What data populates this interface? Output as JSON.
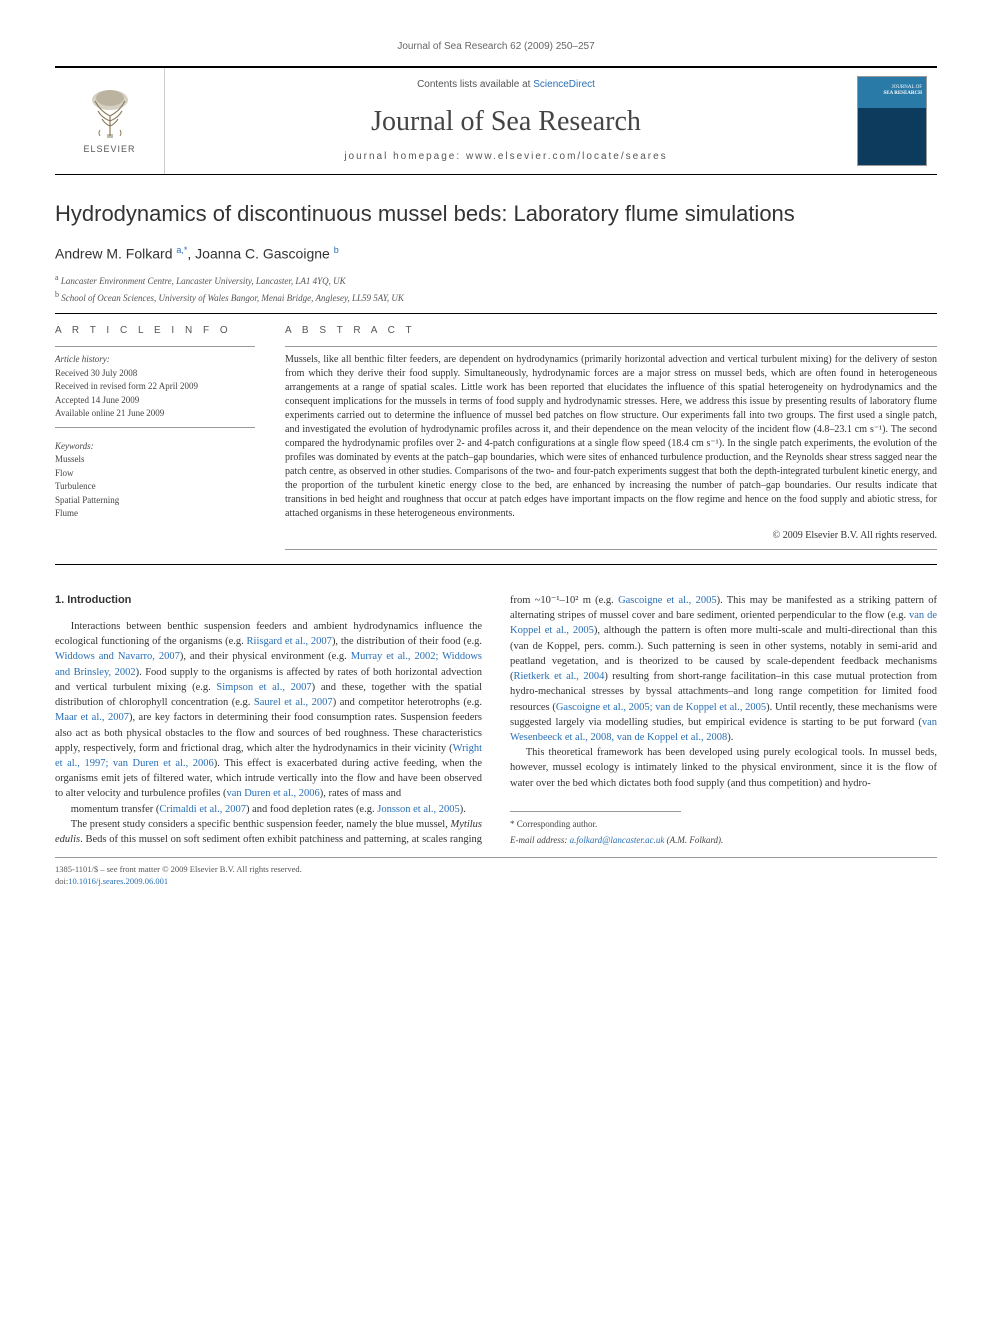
{
  "running_head": "Journal of Sea Research 62 (2009) 250–257",
  "masthead": {
    "contents_prefix": "Contents lists available at ",
    "contents_link": "ScienceDirect",
    "journal_name": "Journal of Sea Research",
    "homepage_prefix": "journal homepage: ",
    "homepage_url": "www.elsevier.com/locate/seares",
    "publisher_name": "ELSEVIER",
    "cover_label_top": "JOURNAL OF",
    "cover_label_bottom": "SEA RESEARCH"
  },
  "article": {
    "title": "Hydrodynamics of discontinuous mussel beds: Laboratory flume simulations",
    "authors_html": "Andrew M. Folkard <sup>a,</sup>*, Joanna C. Gascoigne <sup>b</sup>",
    "authors": [
      {
        "name": "Andrew M. Folkard",
        "marks": "a,*"
      },
      {
        "name": "Joanna C. Gascoigne",
        "marks": "b"
      }
    ],
    "affiliations": [
      {
        "mark": "a",
        "text": "Lancaster Environment Centre, Lancaster University, Lancaster, LA1 4YQ, UK"
      },
      {
        "mark": "b",
        "text": "School of Ocean Sciences, University of Wales Bangor, Menai Bridge, Anglesey, LL59 5AY, UK"
      }
    ]
  },
  "info_head": "A R T I C L E   I N F O",
  "abstract_head": "A B S T R A C T",
  "history": {
    "label": "Article history:",
    "received": "Received 30 July 2008",
    "revised": "Received in revised form 22 April 2009",
    "accepted": "Accepted 14 June 2009",
    "online": "Available online 21 June 2009"
  },
  "keywords": {
    "label": "Keywords:",
    "items": [
      "Mussels",
      "Flow",
      "Turbulence",
      "Spatial Patterning",
      "Flume"
    ]
  },
  "abstract": "Mussels, like all benthic filter feeders, are dependent on hydrodynamics (primarily horizontal advection and vertical turbulent mixing) for the delivery of seston from which they derive their food supply. Simultaneously, hydrodynamic forces are a major stress on mussel beds, which are often found in heterogeneous arrangements at a range of spatial scales. Little work has been reported that elucidates the influence of this spatial heterogeneity on hydrodynamics and the consequent implications for the mussels in terms of food supply and hydrodynamic stresses. Here, we address this issue by presenting results of laboratory flume experiments carried out to determine the influence of mussel bed patches on flow structure. Our experiments fall into two groups. The first used a single patch, and investigated the evolution of hydrodynamic profiles across it, and their dependence on the mean velocity of the incident flow (4.8–23.1 cm s⁻¹). The second compared the hydrodynamic profiles over 2- and 4-patch configurations at a single flow speed (18.4 cm s⁻¹). In the single patch experiments, the evolution of the profiles was dominated by events at the patch–gap boundaries, which were sites of enhanced turbulence production, and the Reynolds shear stress sagged near the patch centre, as observed in other studies. Comparisons of the two- and four-patch experiments suggest that both the depth-integrated turbulent kinetic energy, and the proportion of the turbulent kinetic energy close to the bed, are enhanced by increasing the number of patch–gap boundaries. Our results indicate that transitions in bed height and roughness that occur at patch edges have important impacts on the flow regime and hence on the food supply and abiotic stress, for attached organisms in these heterogeneous environments.",
  "copyright": "© 2009 Elsevier B.V. All rights reserved.",
  "section_heading": "1. Introduction",
  "body_paragraphs": [
    "Interactions between benthic suspension feeders and ambient hydrodynamics influence the ecological functioning of the organisms (e.g. <span class='cite'>Riisgard et al., 2007</span>), the distribution of their food (e.g. <span class='cite'>Widdows and Navarro, 2007</span>), and their physical environment (e.g. <span class='cite'>Murray et al., 2002; Widdows and Brinsley, 2002</span>). Food supply to the organisms is affected by rates of both horizontal advection and vertical turbulent mixing (e.g. <span class='cite'>Simpson et al., 2007</span>) and these, together with the spatial distribution of chlorophyll concentration (e.g. <span class='cite'>Saurel et al., 2007</span>) and competitor heterotrophs (e.g. <span class='cite'>Maar et al., 2007</span>), are key factors in determining their food consumption rates. Suspension feeders also act as both physical obstacles to the flow and sources of bed roughness. These characteristics apply, respectively, form and frictional drag, which alter the hydrodynamics in their vicinity (<span class='cite'>Wright et al., 1997; van Duren et al., 2006</span>). This effect is exacerbated during active feeding, when the organisms emit jets of filtered water, which intrude vertically into the flow and have been observed to alter velocity and turbulence profiles (<span class='cite'>van Duren et al., 2006</span>), rates of mass and",
    "momentum transfer (<span class='cite'>Crimaldi et al., 2007</span>) and food depletion rates (e.g. <span class='cite'>Jonsson et al., 2005</span>).",
    "The present study considers a specific benthic suspension feeder, namely the blue mussel, <i>Mytilus edulis</i>. Beds of this mussel on soft sediment often exhibit patchiness and patterning, at scales ranging from ~10⁻¹–10² m (e.g. <span class='cite'>Gascoigne et al., 2005</span>). This may be manifested as a striking pattern of alternating stripes of mussel cover and bare sediment, oriented perpendicular to the flow (e.g. <span class='cite'>van de Koppel et al., 2005</span>), although the pattern is often more multi-scale and multi-directional than this (van de Koppel, pers. comm.). Such patterning is seen in other systems, notably in semi-arid and peatland vegetation, and is theorized to be caused by scale-dependent feedback mechanisms (<span class='cite'>Rietkerk et al., 2004</span>) resulting from short-range facilitation–in this case mutual protection from hydro-mechanical stresses by byssal attachments–and long range competition for limited food resources (<span class='cite'>Gascoigne et al., 2005; van de Koppel et al., 2005</span>). Until recently, these mechanisms were suggested largely via modelling studies, but empirical evidence is starting to be put forward (<span class='cite'>van Wesenbeeck et al., 2008, van de Koppel et al., 2008</span>).",
    "This theoretical framework has been developed using purely ecological tools. In mussel beds, however, mussel ecology is intimately linked to the physical environment, since it is the flow of water over the bed which dictates both food supply (and thus competition) and hydro-"
  ],
  "footer": {
    "corr_label": "* Corresponding author.",
    "email_label": "E-mail address:",
    "email": "a.folkard@lancaster.ac.uk",
    "email_person": "(A.M. Folkard).",
    "issn_line": "1385-1101/$ – see front matter © 2009 Elsevier B.V. All rights reserved.",
    "doi_label": "doi:",
    "doi": "10.1016/j.seares.2009.06.001"
  },
  "colors": {
    "link": "#2a6fb5",
    "text": "#333333",
    "muted": "#666666",
    "rule": "#000000"
  }
}
